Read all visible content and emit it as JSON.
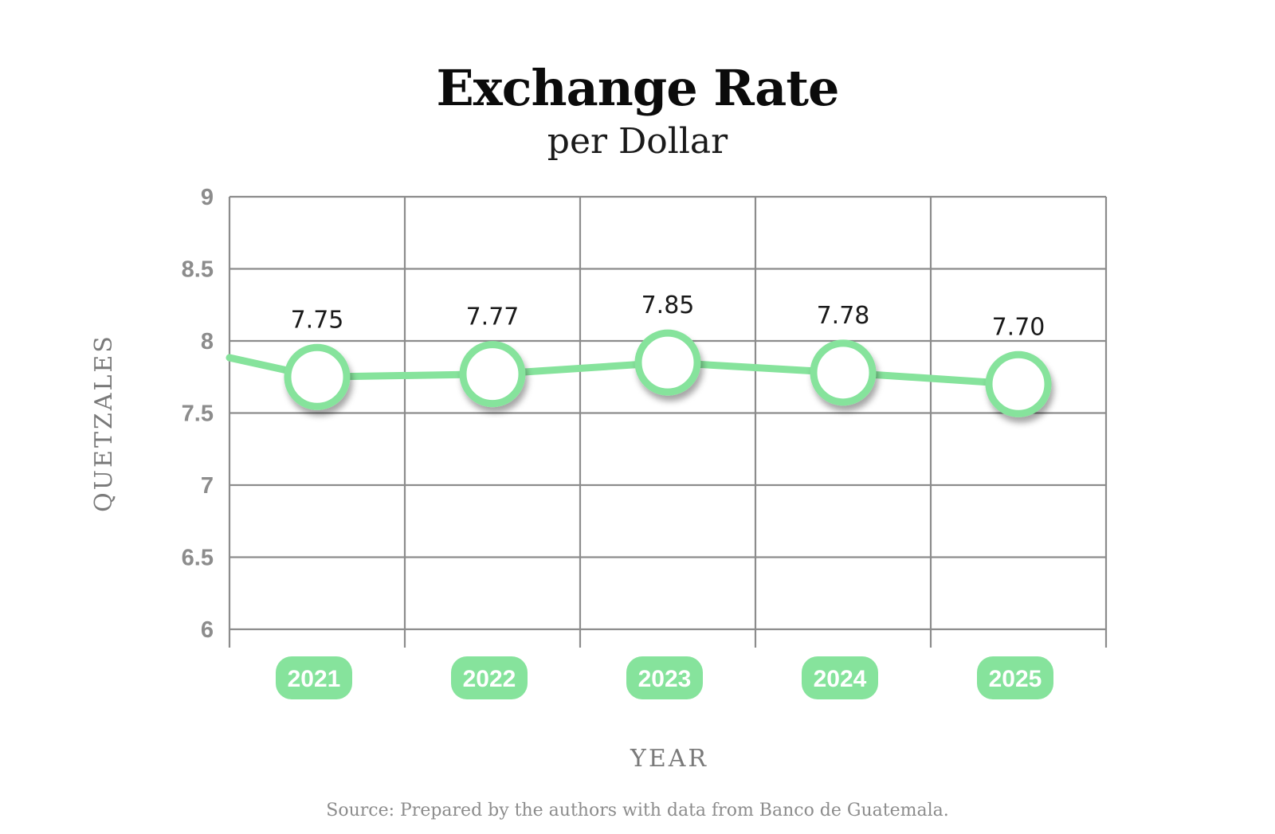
{
  "chart_data": {
    "type": "line",
    "title": "Exchange Rate",
    "subtitle": "per Dollar",
    "xlabel": "YEAR",
    "ylabel": "QUETZALES",
    "categories": [
      "2021",
      "2022",
      "2023",
      "2024",
      "2025"
    ],
    "values": [
      7.75,
      7.77,
      7.85,
      7.78,
      7.7
    ],
    "value_labels": [
      "7.75",
      "7.77",
      "7.85",
      "7.78",
      "7.70"
    ],
    "yticks": [
      9,
      8.5,
      8,
      7.5,
      7,
      6.5,
      6
    ],
    "ylim": [
      6,
      9
    ],
    "grid": true,
    "line_color": "#86e39c",
    "point_fill": "#ffffff",
    "grid_color": "#8c8c8c",
    "source": "Source: Prepared by the authors with data from Banco de Guatemala."
  }
}
